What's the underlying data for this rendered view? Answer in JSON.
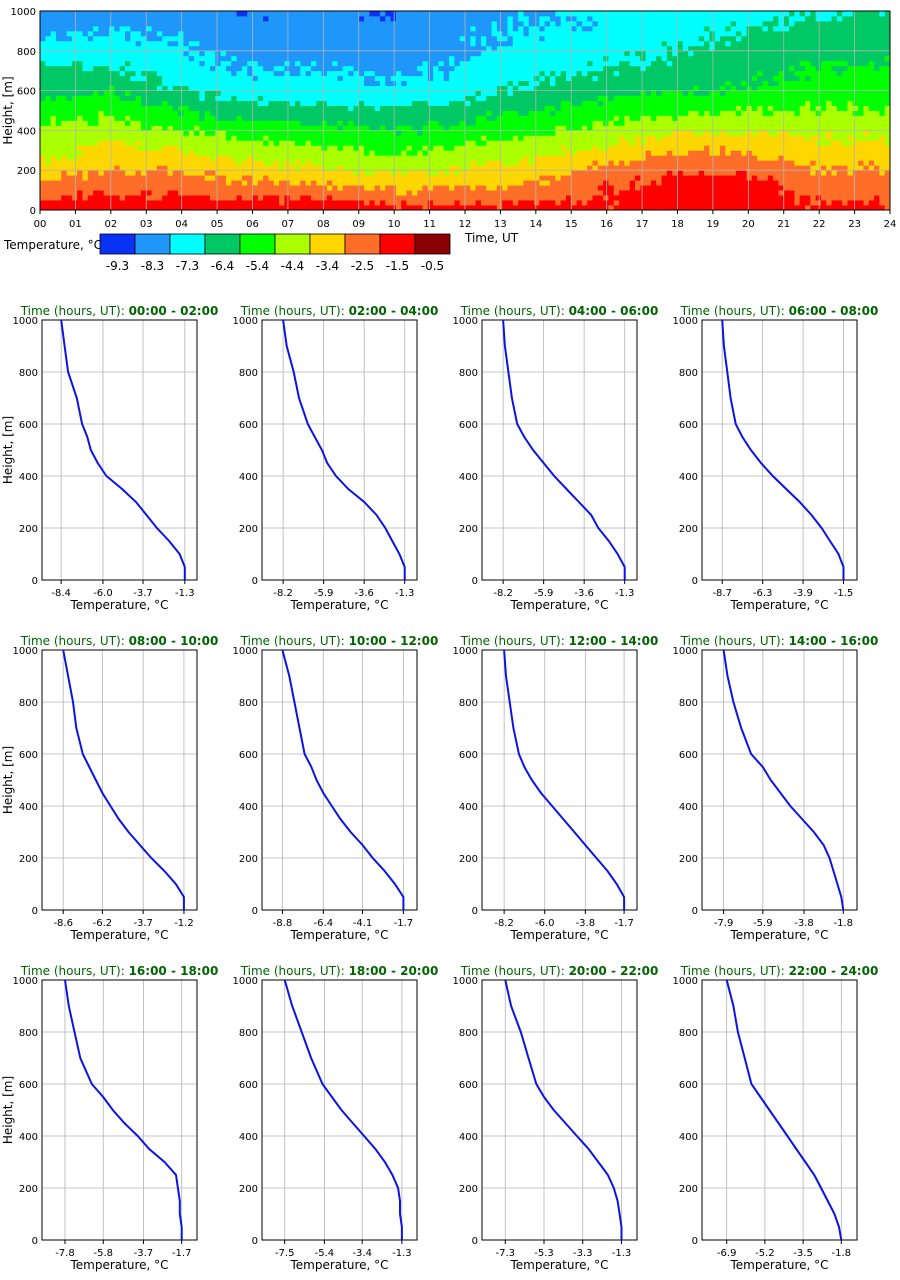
{
  "colors": {
    "grid": "#b4b4b4",
    "profile_line": "#0a14e6",
    "title": "#006400",
    "palette": [
      "#0a32f5",
      "#1e96fa",
      "#00ffff",
      "#00c864",
      "#00ff00",
      "#aaff00",
      "#ffd700",
      "#ff6e28",
      "#ff0000",
      "#8b0000"
    ]
  },
  "chart_data": [
    {
      "type": "heatmap",
      "title": "",
      "xlabel": "Time, UT",
      "ylabel": "Height, [m]",
      "x_ticks": [
        "00",
        "01",
        "02",
        "03",
        "04",
        "05",
        "06",
        "07",
        "08",
        "09",
        "10",
        "11",
        "12",
        "13",
        "14",
        "15",
        "16",
        "17",
        "18",
        "19",
        "20",
        "21",
        "22",
        "23",
        "24"
      ],
      "y_ticks": [
        "0",
        "200",
        "400",
        "600",
        "800",
        "1000"
      ],
      "xlim": [
        0,
        24
      ],
      "ylim": [
        0,
        1000
      ],
      "colorbar": {
        "label": "Temperature, °C",
        "values": [
          "-9.3",
          "-8.3",
          "-7.3",
          "-6.4",
          "-5.4",
          "-4.4",
          "-3.4",
          "-2.5",
          "-1.5",
          "-0.5"
        ]
      },
      "columns": [
        {
          "t": 0,
          "profile": [
            -1.3,
            -3.0,
            -4.3,
            -5.0,
            -6.2,
            -7.0,
            -8.0,
            -8.4
          ]
        },
        {
          "t": 2,
          "profile": [
            -1.3,
            -2.6,
            -3.6,
            -4.8,
            -6.0,
            -7.0,
            -7.8,
            -8.2
          ]
        },
        {
          "t": 4,
          "profile": [
            -1.3,
            -2.6,
            -3.9,
            -5.4,
            -6.8,
            -7.6,
            -8.0,
            -8.2
          ]
        },
        {
          "t": 6,
          "profile": [
            -1.5,
            -3.0,
            -4.4,
            -5.9,
            -7.4,
            -8.0,
            -8.4,
            -8.7
          ]
        },
        {
          "t": 8,
          "profile": [
            -1.2,
            -3.2,
            -4.7,
            -6.0,
            -7.4,
            -8.0,
            -8.2,
            -8.6
          ]
        },
        {
          "t": 10,
          "profile": [
            -1.7,
            -3.6,
            -5.1,
            -6.4,
            -7.6,
            -8.2,
            -8.5,
            -8.8
          ]
        },
        {
          "t": 12,
          "profile": [
            -1.7,
            -3.3,
            -4.7,
            -5.9,
            -7.3,
            -7.8,
            -8.0,
            -8.2
          ]
        },
        {
          "t": 14,
          "profile": [
            -1.8,
            -3.0,
            -4.3,
            -5.5,
            -6.6,
            -7.3,
            -7.7,
            -7.9
          ]
        },
        {
          "t": 16,
          "profile": [
            -1.8,
            -2.2,
            -3.6,
            -5.0,
            -6.3,
            -7.0,
            -7.5,
            -7.8
          ]
        },
        {
          "t": 18,
          "profile": [
            -1.3,
            -1.7,
            -3.0,
            -4.6,
            -6.0,
            -6.7,
            -7.2,
            -7.5
          ]
        },
        {
          "t": 20,
          "profile": [
            -1.3,
            -1.8,
            -3.0,
            -4.5,
            -5.8,
            -6.3,
            -6.8,
            -7.3
          ]
        },
        {
          "t": 22,
          "profile": [
            -1.8,
            -2.6,
            -3.5,
            -4.5,
            -5.4,
            -6.0,
            -6.5,
            -6.9
          ]
        },
        {
          "t": 24,
          "profile": [
            -1.8,
            -2.6,
            -3.5,
            -4.5,
            -5.4,
            -6.0,
            -6.5,
            -6.9
          ]
        }
      ],
      "profile_heights": [
        0,
        150,
        300,
        450,
        600,
        750,
        900,
        1000
      ]
    },
    {
      "type": "line",
      "title_prefix": "Time (hours, UT): ",
      "title_range": "00:00 - 02:00",
      "xlabel": "Temperature, °C",
      "ylabel": "Height, [m]",
      "x_ticks": [
        "-8.4",
        "-6.0",
        "-3.7",
        "-1.3"
      ],
      "xlim": [
        -9.5,
        -0.6
      ],
      "y_ticks": [
        "0",
        "200",
        "400",
        "600",
        "800",
        "1000"
      ],
      "ylim": [
        0,
        1000
      ],
      "series": [
        {
          "name": "profile",
          "x": [
            -1.3,
            -1.3,
            -1.6,
            -2.2,
            -2.9,
            -3.5,
            -4.1,
            -4.9,
            -5.8,
            -6.3,
            -6.7,
            -6.9,
            -7.2,
            -7.5,
            -8.0,
            -8.2,
            -8.4
          ],
          "y": [
            0,
            50,
            100,
            150,
            200,
            250,
            300,
            350,
            400,
            450,
            500,
            550,
            600,
            700,
            800,
            900,
            1000
          ]
        }
      ]
    },
    {
      "type": "line",
      "title_prefix": "Time (hours, UT): ",
      "title_range": "02:00 - 04:00",
      "xlabel": "Temperature, °C",
      "ylabel": "Height, [m]",
      "x_ticks": [
        "-8.2",
        "-5.9",
        "-3.6",
        "-1.3"
      ],
      "xlim": [
        -9.4,
        -0.6
      ],
      "y_ticks": [
        "0",
        "200",
        "400",
        "600",
        "800",
        "1000"
      ],
      "ylim": [
        0,
        1000
      ],
      "series": [
        {
          "name": "profile",
          "x": [
            -1.3,
            -1.3,
            -1.6,
            -2.0,
            -2.4,
            -2.9,
            -3.6,
            -4.5,
            -5.2,
            -5.7,
            -6.0,
            -6.4,
            -6.8,
            -7.3,
            -7.6,
            -8.0,
            -8.2
          ],
          "y": [
            0,
            50,
            100,
            150,
            200,
            250,
            300,
            350,
            400,
            450,
            500,
            550,
            600,
            700,
            800,
            900,
            1000
          ]
        }
      ]
    },
    {
      "type": "line",
      "title_prefix": "Time (hours, UT): ",
      "title_range": "04:00 - 06:00",
      "xlabel": "Temperature, °C",
      "ylabel": "Height, [m]",
      "x_ticks": [
        "-8.2",
        "-5.9",
        "-3.6",
        "-1.3"
      ],
      "xlim": [
        -9.4,
        -0.6
      ],
      "y_ticks": [
        "0",
        "200",
        "400",
        "600",
        "800",
        "1000"
      ],
      "ylim": [
        0,
        1000
      ],
      "series": [
        {
          "name": "profile",
          "x": [
            -1.3,
            -1.3,
            -1.7,
            -2.2,
            -2.8,
            -3.2,
            -3.9,
            -4.6,
            -5.3,
            -5.9,
            -6.5,
            -7.0,
            -7.4,
            -7.7,
            -7.9,
            -8.1,
            -8.2
          ],
          "y": [
            0,
            50,
            100,
            150,
            200,
            250,
            300,
            350,
            400,
            450,
            500,
            550,
            600,
            700,
            800,
            900,
            1000
          ]
        }
      ]
    },
    {
      "type": "line",
      "title_prefix": "Time (hours, UT): ",
      "title_range": "06:00 - 08:00",
      "xlabel": "Temperature, °C",
      "ylabel": "Height, [m]",
      "x_ticks": [
        "-8.7",
        "-6.3",
        "-3.9",
        "-1.5"
      ],
      "xlim": [
        -9.9,
        -0.7
      ],
      "y_ticks": [
        "0",
        "200",
        "400",
        "600",
        "800",
        "1000"
      ],
      "ylim": [
        0,
        1000
      ],
      "series": [
        {
          "name": "profile",
          "x": [
            -1.5,
            -1.5,
            -1.8,
            -2.3,
            -2.8,
            -3.4,
            -4.1,
            -4.9,
            -5.7,
            -6.4,
            -7.0,
            -7.5,
            -7.9,
            -8.2,
            -8.4,
            -8.6,
            -8.7
          ],
          "y": [
            0,
            50,
            100,
            150,
            200,
            250,
            300,
            350,
            400,
            450,
            500,
            550,
            600,
            700,
            800,
            900,
            1000
          ]
        }
      ]
    },
    {
      "type": "line",
      "title_prefix": "Time (hours, UT): ",
      "title_range": "08:00 - 10:00",
      "xlabel": "Temperature, °C",
      "ylabel": "Height, [m]",
      "x_ticks": [
        "-8.6",
        "-6.2",
        "-3.7",
        "-1.2"
      ],
      "xlim": [
        -9.9,
        -0.4
      ],
      "y_ticks": [
        "0",
        "200",
        "400",
        "600",
        "800",
        "1000"
      ],
      "ylim": [
        0,
        1000
      ],
      "series": [
        {
          "name": "profile",
          "x": [
            -1.2,
            -1.2,
            -1.7,
            -2.4,
            -3.2,
            -3.9,
            -4.6,
            -5.2,
            -5.7,
            -6.2,
            -6.6,
            -7.0,
            -7.4,
            -7.8,
            -8.0,
            -8.3,
            -8.6
          ],
          "y": [
            0,
            50,
            100,
            150,
            200,
            250,
            300,
            350,
            400,
            450,
            500,
            550,
            600,
            700,
            800,
            900,
            1000
          ]
        }
      ]
    },
    {
      "type": "line",
      "title_prefix": "Time (hours, UT): ",
      "title_range": "10:00 - 12:00",
      "xlabel": "Temperature, °C",
      "ylabel": "Height, [m]",
      "x_ticks": [
        "-8.8",
        "-6.4",
        "-4.1",
        "-1.7"
      ],
      "xlim": [
        -10.0,
        -0.9
      ],
      "y_ticks": [
        "0",
        "200",
        "400",
        "600",
        "800",
        "1000"
      ],
      "ylim": [
        0,
        1000
      ],
      "series": [
        {
          "name": "profile",
          "x": [
            -1.7,
            -1.7,
            -2.2,
            -2.8,
            -3.5,
            -4.1,
            -4.8,
            -5.4,
            -5.9,
            -6.4,
            -6.8,
            -7.1,
            -7.5,
            -7.8,
            -8.1,
            -8.4,
            -8.8
          ],
          "y": [
            0,
            50,
            100,
            150,
            200,
            250,
            300,
            350,
            400,
            450,
            500,
            550,
            600,
            700,
            800,
            900,
            1000
          ]
        }
      ]
    },
    {
      "type": "line",
      "title_prefix": "Time (hours, UT): ",
      "title_range": "12:00 - 14:00",
      "xlabel": "Temperature, °C",
      "ylabel": "Height, [m]",
      "x_ticks": [
        "-8.2",
        "-6.0",
        "-3.8",
        "-1.7"
      ],
      "xlim": [
        -9.4,
        -1.0
      ],
      "y_ticks": [
        "0",
        "200",
        "400",
        "600",
        "800",
        "1000"
      ],
      "ylim": [
        0,
        1000
      ],
      "series": [
        {
          "name": "profile",
          "x": [
            -1.7,
            -1.7,
            -2.1,
            -2.6,
            -3.2,
            -3.8,
            -4.4,
            -5.0,
            -5.6,
            -6.2,
            -6.7,
            -7.1,
            -7.4,
            -7.7,
            -7.9,
            -8.1,
            -8.2
          ],
          "y": [
            0,
            50,
            100,
            150,
            200,
            250,
            300,
            350,
            400,
            450,
            500,
            550,
            600,
            700,
            800,
            900,
            1000
          ]
        }
      ]
    },
    {
      "type": "line",
      "title_prefix": "Time (hours, UT): ",
      "title_range": "14:00 - 16:00",
      "xlabel": "Temperature, °C",
      "ylabel": "Height, [m]",
      "x_ticks": [
        "-7.9",
        "-5.9",
        "-3.8",
        "-1.8"
      ],
      "xlim": [
        -9.0,
        -1.1
      ],
      "y_ticks": [
        "0",
        "200",
        "400",
        "600",
        "800",
        "1000"
      ],
      "ylim": [
        0,
        1000
      ],
      "series": [
        {
          "name": "profile",
          "x": [
            -1.8,
            -1.9,
            -2.1,
            -2.3,
            -2.5,
            -2.8,
            -3.3,
            -3.9,
            -4.5,
            -5.0,
            -5.5,
            -5.9,
            -6.5,
            -7.0,
            -7.4,
            -7.7,
            -7.9
          ],
          "y": [
            0,
            50,
            100,
            150,
            200,
            250,
            300,
            350,
            400,
            450,
            500,
            550,
            600,
            700,
            800,
            900,
            1000
          ]
        }
      ]
    },
    {
      "type": "line",
      "title_prefix": "Time (hours, UT): ",
      "title_range": "16:00 - 18:00",
      "xlabel": "Temperature, °C",
      "ylabel": "Height, [m]",
      "x_ticks": [
        "-7.8",
        "-5.8",
        "-3.7",
        "-1.7"
      ],
      "xlim": [
        -9.0,
        -0.9
      ],
      "y_ticks": [
        "0",
        "200",
        "400",
        "600",
        "800",
        "1000"
      ],
      "ylim": [
        0,
        1000
      ],
      "series": [
        {
          "name": "profile",
          "x": [
            -1.7,
            -1.7,
            -1.8,
            -1.8,
            -1.9,
            -2.0,
            -2.6,
            -3.4,
            -4.0,
            -4.7,
            -5.3,
            -5.8,
            -6.4,
            -7.0,
            -7.3,
            -7.6,
            -7.8
          ],
          "y": [
            0,
            50,
            100,
            150,
            200,
            250,
            300,
            350,
            400,
            450,
            500,
            550,
            600,
            700,
            800,
            900,
            1000
          ]
        }
      ]
    },
    {
      "type": "line",
      "title_prefix": "Time (hours, UT): ",
      "title_range": "18:00 - 20:00",
      "xlabel": "Temperature, °C",
      "ylabel": "Height, [m]",
      "x_ticks": [
        "-7.5",
        "-5.4",
        "-3.4",
        "-1.3"
      ],
      "xlim": [
        -8.7,
        -0.5
      ],
      "y_ticks": [
        "0",
        "200",
        "400",
        "600",
        "800",
        "1000"
      ],
      "ylim": [
        0,
        1000
      ],
      "series": [
        {
          "name": "profile",
          "x": [
            -1.3,
            -1.3,
            -1.4,
            -1.4,
            -1.5,
            -1.8,
            -2.2,
            -2.7,
            -3.3,
            -3.9,
            -4.5,
            -5.0,
            -5.5,
            -6.1,
            -6.6,
            -7.1,
            -7.5
          ],
          "y": [
            0,
            50,
            100,
            150,
            200,
            250,
            300,
            350,
            400,
            450,
            500,
            550,
            600,
            700,
            800,
            900,
            1000
          ]
        }
      ]
    },
    {
      "type": "line",
      "title_prefix": "Time (hours, UT): ",
      "title_range": "20:00 - 22:00",
      "xlabel": "Temperature, °C",
      "ylabel": "Height, [m]",
      "x_ticks": [
        "-7.3",
        "-5.3",
        "-3.3",
        "-1.3"
      ],
      "xlim": [
        -8.5,
        -0.5
      ],
      "y_ticks": [
        "0",
        "200",
        "400",
        "600",
        "800",
        "1000"
      ],
      "ylim": [
        0,
        1000
      ],
      "series": [
        {
          "name": "profile",
          "x": [
            -1.3,
            -1.3,
            -1.4,
            -1.5,
            -1.7,
            -2.0,
            -2.5,
            -3.0,
            -3.6,
            -4.2,
            -4.8,
            -5.3,
            -5.7,
            -6.1,
            -6.5,
            -7.0,
            -7.3
          ],
          "y": [
            0,
            50,
            100,
            150,
            200,
            250,
            300,
            350,
            400,
            450,
            500,
            550,
            600,
            700,
            800,
            900,
            1000
          ]
        }
      ]
    },
    {
      "type": "line",
      "title_prefix": "Time (hours, UT): ",
      "title_range": "22:00 - 24:00",
      "xlabel": "Temperature, °C",
      "ylabel": "Height, [m]",
      "x_ticks": [
        "-6.9",
        "-5.2",
        "-3.5",
        "-1.8"
      ],
      "xlim": [
        -8.0,
        -1.1
      ],
      "y_ticks": [
        "0",
        "200",
        "400",
        "600",
        "800",
        "1000"
      ],
      "ylim": [
        0,
        1000
      ],
      "series": [
        {
          "name": "profile",
          "x": [
            -1.8,
            -1.9,
            -2.1,
            -2.4,
            -2.7,
            -3.0,
            -3.4,
            -3.8,
            -4.2,
            -4.6,
            -5.0,
            -5.4,
            -5.8,
            -6.1,
            -6.4,
            -6.6,
            -6.9
          ],
          "y": [
            0,
            50,
            100,
            150,
            200,
            250,
            300,
            350,
            400,
            450,
            500,
            550,
            600,
            700,
            800,
            900,
            1000
          ]
        }
      ]
    }
  ]
}
